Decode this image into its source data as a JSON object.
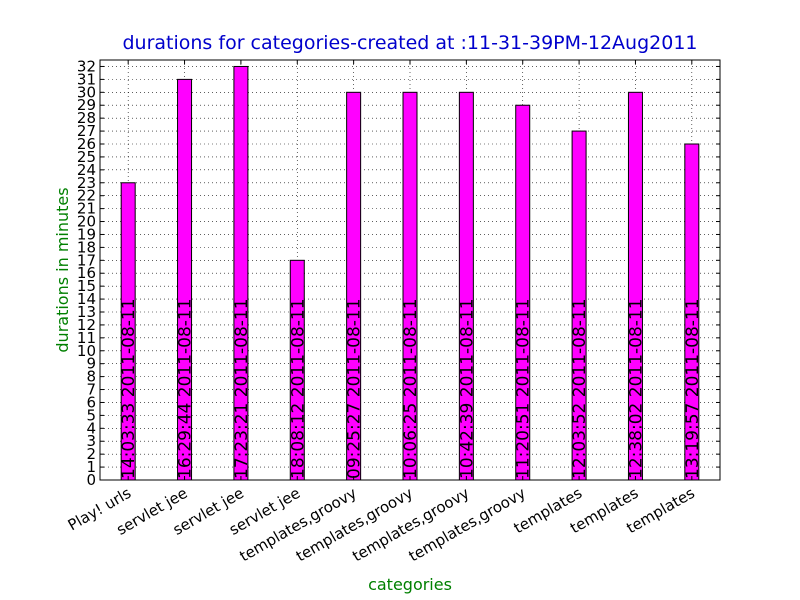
{
  "chart_data": {
    "type": "bar",
    "title": "durations for categories-created at :11-31-39PM-12Aug2011",
    "xlabel": "categories",
    "ylabel": "durations in  minutes",
    "categories": [
      "Play! urls",
      "servlet jee",
      "servlet jee",
      "servlet jee",
      "templates,groovy",
      "templates,groovy",
      "templates,groovy",
      "templates,groovy",
      "templates",
      "templates",
      "templates"
    ],
    "values": [
      23,
      31,
      32,
      17,
      30,
      30,
      30,
      29,
      27,
      30,
      26
    ],
    "bar_labels": [
      "14:03:33 2011-08-11",
      "16:29:44 2011-08-11",
      "17:23:21 2011-08-11",
      "18:08:12 2011-08-11",
      "09:25:27 2011-08-11",
      "10:06:25 2011-08-11",
      "10:42:39 2011-08-11",
      "11:20:51 2011-08-11",
      "12:03:52 2011-08-11",
      "12:38:02 2011-08-11",
      "13:19:57 2011-08-11"
    ],
    "ylim": [
      0,
      32.5
    ],
    "yticks": [
      0,
      1,
      2,
      3,
      4,
      5,
      6,
      7,
      8,
      9,
      10,
      11,
      12,
      13,
      14,
      15,
      16,
      17,
      18,
      19,
      20,
      21,
      22,
      23,
      24,
      25,
      26,
      27,
      28,
      29,
      30,
      31,
      32
    ],
    "grid": true,
    "bar_color": "#ff00ff",
    "title_color": "#0000cc",
    "label_color": "#008000"
  }
}
